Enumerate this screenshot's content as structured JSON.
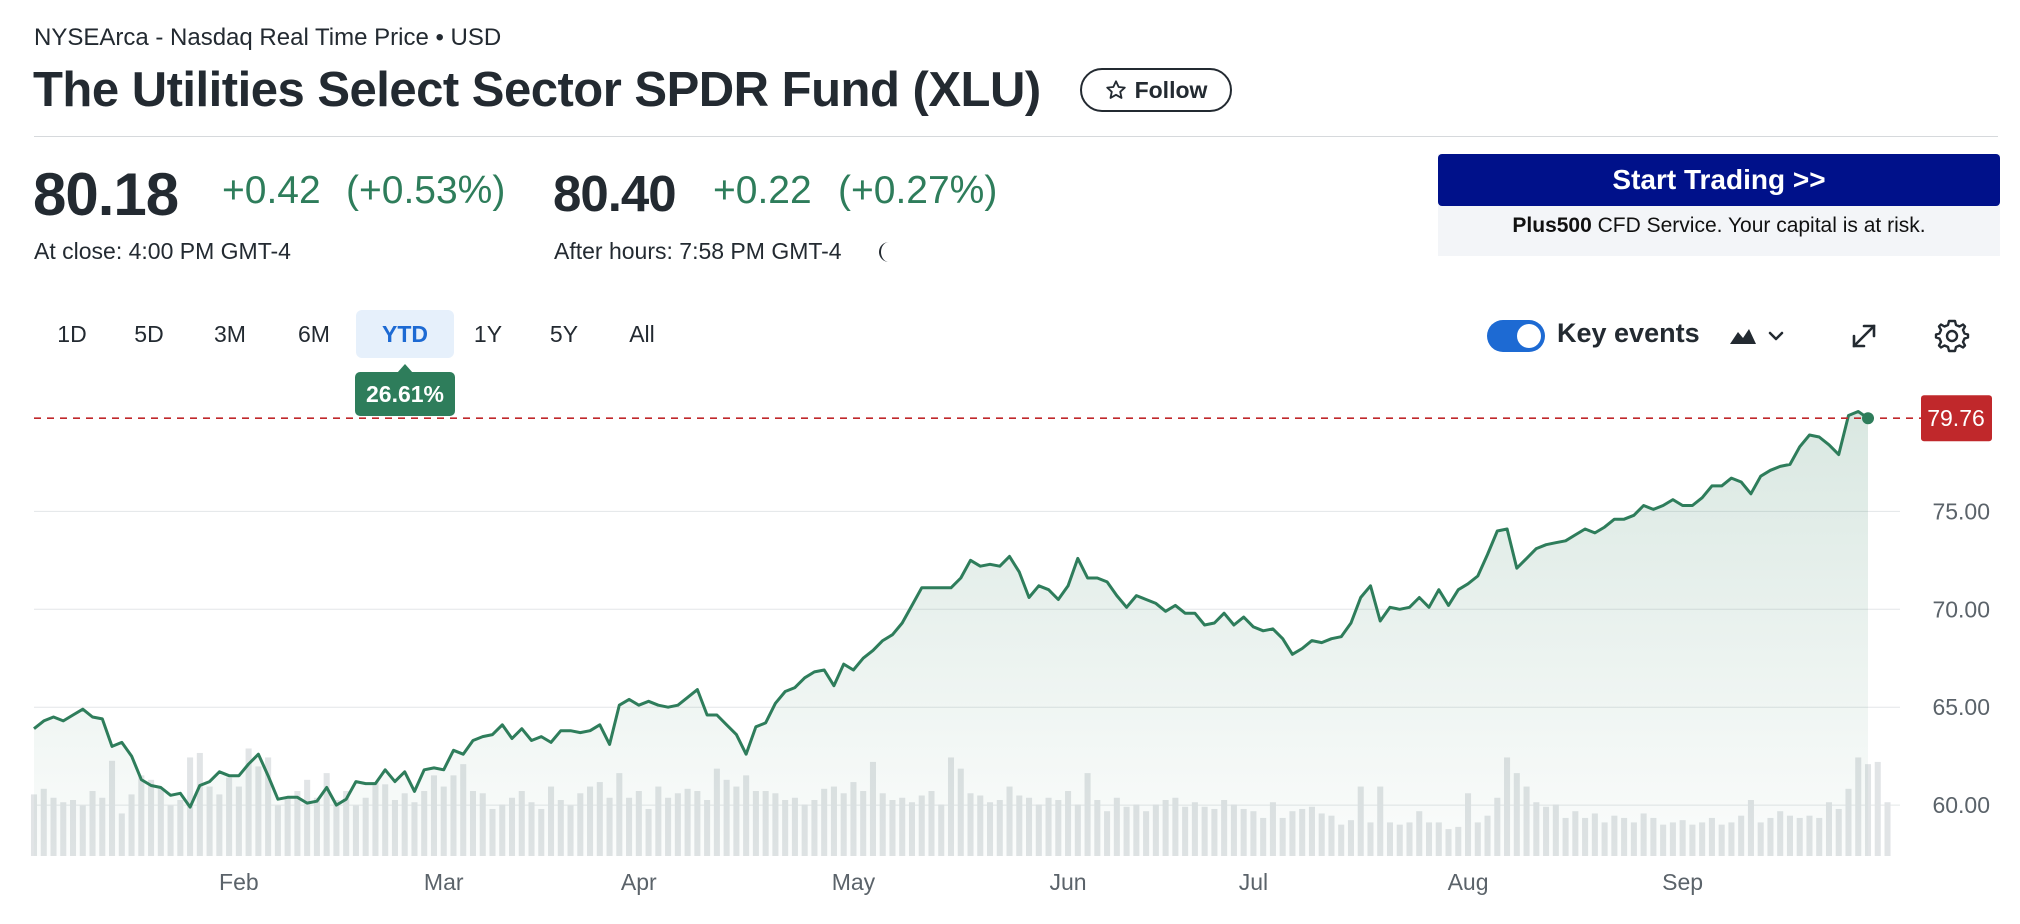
{
  "header": {
    "exchange": "NYSEArca - Nasdaq Real Time Price • USD",
    "title": "The Utilities Select Sector SPDR Fund (XLU)",
    "follow_label": "Follow",
    "follow_icon": "star-icon"
  },
  "quote": {
    "close_price": "80.18",
    "close_change": "+0.42",
    "close_change_pct": "(+0.53%)",
    "close_label": "At close: 4:00 PM GMT-4",
    "after_hours_price": "80.40",
    "after_hours_change": "+0.22",
    "after_hours_change_pct": "(+0.27%)",
    "after_hours_label": "After hours: 7:58 PM GMT-4",
    "after_hours_icon": "moon-icon",
    "positive_color": "#2e7d5b"
  },
  "ad": {
    "button_label": "Start Trading >>",
    "brand": "Plus500",
    "text": " CFD Service. Your capital is at risk.",
    "button_color": "#00118a"
  },
  "range_selector": {
    "options": [
      "1D",
      "5D",
      "3M",
      "6M",
      "YTD",
      "1Y",
      "5Y",
      "All"
    ],
    "selected": "YTD",
    "selected_change": "26.61%"
  },
  "controls": {
    "key_events_label": "Key events",
    "key_events_on": true,
    "chart_type_icon": "mountain-chart-icon",
    "expand_icon": "expand-icon",
    "settings_icon": "gear-icon"
  },
  "chart_data": {
    "type": "area",
    "x_labels": [
      "Feb",
      "Mar",
      "Apr",
      "May",
      "Jun",
      "Jul",
      "Aug",
      "Sep"
    ],
    "y_ticks": [
      "60.00",
      "65.00",
      "70.00",
      "75.00"
    ],
    "ylim": [
      57.4,
      81.2
    ],
    "reference_price": 79.76,
    "reference_label": "79.76",
    "reference_color": "#c0282b",
    "line_color": "#2e7d5b",
    "grid": true,
    "y_axis_position": "right",
    "series": [
      {
        "values": [
          63.9,
          64.3,
          64.5,
          64.3,
          64.6,
          64.9,
          64.5,
          64.4,
          63.0,
          63.2,
          62.5,
          61.3,
          61.0,
          60.9,
          60.5,
          60.6,
          59.9,
          61.0,
          61.2,
          61.7,
          61.5,
          61.5,
          62.1,
          62.6,
          61.5,
          60.3,
          60.4,
          60.4,
          60.1,
          60.2,
          60.9,
          60.0,
          60.3,
          61.2,
          61.1,
          61.1,
          61.8,
          61.2,
          61.7,
          60.7,
          61.8,
          61.9,
          61.8,
          62.8,
          62.6,
          63.3,
          63.5,
          63.6,
          64.1,
          63.4,
          63.9,
          63.3,
          63.5,
          63.2,
          63.8,
          63.8,
          63.7,
          63.8,
          64.1,
          63.1,
          65.1,
          65.4,
          65.1,
          65.3,
          65.1,
          65.0,
          65.1,
          65.5,
          65.9,
          64.6,
          64.6,
          64.1,
          63.6,
          62.6,
          64.0,
          64.2,
          65.2,
          65.8,
          66.0,
          66.5,
          66.8,
          66.9,
          66.1,
          67.2,
          66.9,
          67.5,
          67.9,
          68.4,
          68.7,
          69.3,
          70.2,
          71.1,
          71.1,
          71.1,
          71.1,
          71.6,
          72.5,
          72.2,
          72.3,
          72.2,
          72.7,
          71.9,
          70.6,
          71.2,
          71.0,
          70.5,
          71.2,
          72.6,
          71.6,
          71.6,
          71.4,
          70.7,
          70.1,
          70.7,
          70.5,
          70.3,
          69.9,
          70.2,
          69.8,
          69.8,
          69.2,
          69.3,
          69.8,
          69.2,
          69.6,
          69.1,
          68.9,
          69.0,
          68.5,
          67.7,
          68.0,
          68.4,
          68.3,
          68.5,
          68.6,
          69.3,
          70.6,
          71.2,
          69.4,
          70.1,
          70.0,
          70.1,
          70.6,
          70.1,
          71.0,
          70.2,
          71.0,
          71.3,
          71.7,
          72.8,
          74.0,
          74.1,
          72.1,
          72.6,
          73.1,
          73.3,
          73.4,
          73.5,
          73.8,
          74.1,
          73.9,
          74.2,
          74.6,
          74.6,
          74.8,
          75.3,
          75.1,
          75.3,
          75.6,
          75.3,
          75.3,
          75.7,
          76.3,
          76.3,
          76.7,
          76.5,
          75.9,
          76.8,
          77.1,
          77.3,
          77.4,
          78.3,
          78.9,
          78.8,
          78.4,
          77.9,
          79.9,
          80.1,
          79.76
        ]
      }
    ],
    "volume_color": "#e1e4e6",
    "volume": [
      0.55,
      0.6,
      0.52,
      0.48,
      0.5,
      0.45,
      0.58,
      0.52,
      0.85,
      0.38,
      0.55,
      0.72,
      0.68,
      0.6,
      0.45,
      0.5,
      0.88,
      0.92,
      0.62,
      0.55,
      0.7,
      0.62,
      0.96,
      0.8,
      0.88,
      0.45,
      0.52,
      0.58,
      0.68,
      0.52,
      0.74,
      0.5,
      0.58,
      0.45,
      0.52,
      0.66,
      0.64,
      0.5,
      0.56,
      0.48,
      0.58,
      0.72,
      0.62,
      0.72,
      0.82,
      0.58,
      0.56,
      0.42,
      0.46,
      0.52,
      0.58,
      0.48,
      0.42,
      0.62,
      0.5,
      0.45,
      0.56,
      0.62,
      0.66,
      0.52,
      0.74,
      0.52,
      0.58,
      0.42,
      0.62,
      0.52,
      0.56,
      0.6,
      0.58,
      0.5,
      0.78,
      0.68,
      0.62,
      0.72,
      0.58,
      0.58,
      0.56,
      0.5,
      0.52,
      0.46,
      0.5,
      0.6,
      0.62,
      0.56,
      0.66,
      0.58,
      0.84,
      0.56,
      0.5,
      0.52,
      0.48,
      0.54,
      0.58,
      0.46,
      0.88,
      0.78,
      0.56,
      0.54,
      0.48,
      0.5,
      0.62,
      0.54,
      0.52,
      0.46,
      0.52,
      0.5,
      0.58,
      0.46,
      0.74,
      0.5,
      0.4,
      0.52,
      0.44,
      0.46,
      0.4,
      0.46,
      0.5,
      0.52,
      0.44,
      0.48,
      0.44,
      0.42,
      0.5,
      0.46,
      0.42,
      0.4,
      0.34,
      0.48,
      0.34,
      0.4,
      0.42,
      0.44,
      0.38,
      0.36,
      0.28,
      0.32,
      0.62,
      0.3,
      0.62,
      0.3,
      0.28,
      0.3,
      0.4,
      0.3,
      0.3,
      0.24,
      0.26,
      0.56,
      0.3,
      0.36,
      0.52,
      0.88,
      0.74,
      0.62,
      0.48,
      0.44,
      0.46,
      0.34,
      0.4,
      0.34,
      0.38,
      0.3,
      0.36,
      0.34,
      0.3,
      0.38,
      0.34,
      0.28,
      0.3,
      0.32,
      0.28,
      0.3,
      0.34,
      0.28,
      0.3,
      0.36,
      0.5,
      0.3,
      0.34,
      0.4,
      0.36,
      0.34,
      0.36,
      0.34,
      0.48,
      0.42,
      0.6,
      0.88,
      0.82,
      0.84,
      0.48
    ]
  }
}
